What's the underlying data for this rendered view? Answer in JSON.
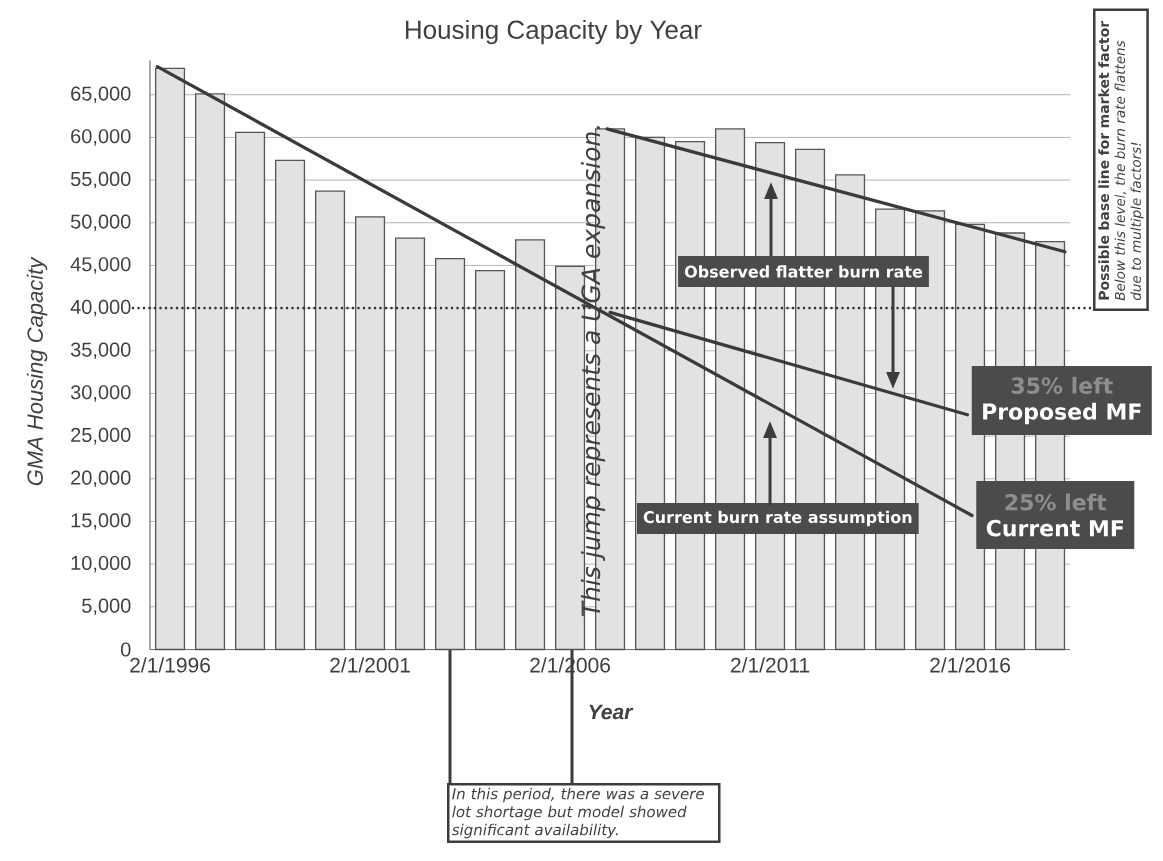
{
  "chart_data": {
    "type": "bar",
    "title": "Housing Capacity by Year",
    "xlabel": "Year",
    "ylabel": "GMA Housing Capacity",
    "x": [
      "1996-02-01",
      "1997-02-01",
      "1998-02-01",
      "1999-02-01",
      "2000-02-01",
      "2001-02-01",
      "2002-02-01",
      "2003-02-01",
      "2004-02-01",
      "2005-02-01",
      "2006-02-01",
      "2007-02-01",
      "2008-02-01",
      "2009-02-01",
      "2010-02-01",
      "2011-02-01",
      "2012-02-01",
      "2013-02-01",
      "2014-02-01",
      "2015-02-01",
      "2016-02-01",
      "2017-02-01",
      "2018-02-01"
    ],
    "xlim": [
      "1995-08-02",
      "2018-08-02"
    ],
    "xticks": [
      {
        "value": "1996-02-01",
        "label": "2/1/1996"
      },
      {
        "value": "2001-02-01",
        "label": "2/1/2001"
      },
      {
        "value": "2006-02-01",
        "label": "2/1/2006"
      },
      {
        "value": "2011-02-01",
        "label": "2/1/2011"
      },
      {
        "value": "2016-02-01",
        "label": "2/1/2016"
      }
    ],
    "ylim": [
      0,
      69000
    ],
    "yticks": [
      0,
      {
        "value": 5000,
        "label": "5,000"
      },
      {
        "value": 10000,
        "label": "10,000"
      },
      {
        "value": 15000,
        "label": "15,000"
      },
      {
        "value": 20000,
        "label": "20,000"
      },
      {
        "value": 25000,
        "label": "25,000"
      },
      {
        "value": 30000,
        "label": "30,000"
      },
      {
        "value": 35000,
        "label": "35,000"
      },
      {
        "value": 40000,
        "label": "40,000"
      },
      {
        "value": 45000,
        "label": "45,000"
      },
      {
        "value": 50000,
        "label": "50,000"
      },
      {
        "value": 55000,
        "label": "55,000"
      },
      {
        "value": 60000,
        "label": "60,000"
      },
      {
        "value": 65000,
        "label": "65,000"
      }
    ],
    "grid": "y",
    "series": [
      {
        "color": "#e2e2e2",
        "values": [
          68100,
          65100,
          60600,
          57300,
          53700,
          50700,
          48200,
          45800,
          44400,
          48000,
          44900,
          61000,
          60000,
          59500,
          61000,
          59400,
          58600,
          55600,
          51600,
          51400,
          49800,
          48800,
          47800
        ]
      },
      {
        "type": "line",
        "color": "#3a3a3a",
        "x": [
          "1995-10-08",
          "2016-02-19"
        ],
        "values": [
          68300,
          15700
        ]
      },
      {
        "type": "line",
        "color": "#3a3a3a",
        "x": [
          "2007-02-01",
          "2016-01-08"
        ],
        "values": [
          39500,
          27500
        ]
      },
      {
        "type": "line",
        "color": "#3a3a3a",
        "x": [
          "2007-01-04",
          "2018-06-17"
        ],
        "values": [
          61000,
          46600
        ]
      }
    ],
    "ref_lines": [
      {
        "axis": "y",
        "value": 40000,
        "label": "Possible base line for market factor",
        "color": "#333333",
        "line_style": "dotted"
      }
    ],
    "annotations": [
      "This jump represents a UGA expansion.",
      "Observed flatter burn rate",
      "Current burn rate assumption",
      "35% left",
      "Proposed MF",
      "25% left",
      "Current MF",
      "Below this level, the burn rate flattens due to multiple factors!",
      "In this period, there was a severe lot shortage but model showed significant availability."
    ]
  }
}
